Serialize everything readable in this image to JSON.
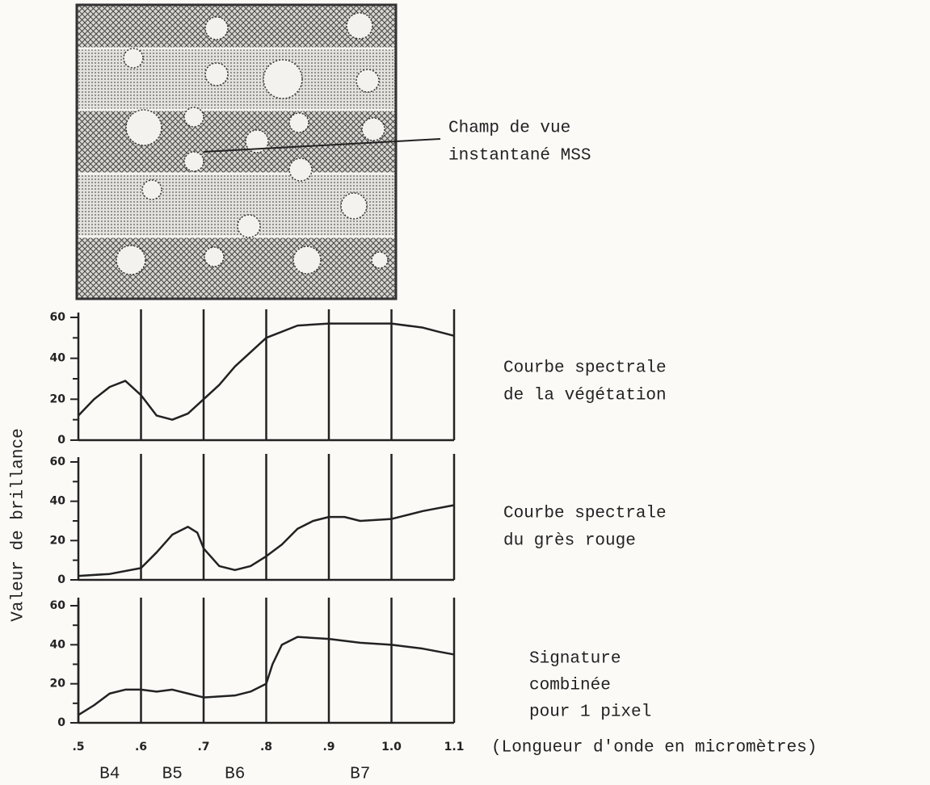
{
  "figure": {
    "label": [
      "Champ de vue",
      "instantané MSS"
    ]
  },
  "chart_data": [
    {
      "type": "line",
      "title": [
        "Courbe spectrale",
        "de la végétation"
      ],
      "x": [
        0.5,
        0.525,
        0.55,
        0.575,
        0.6,
        0.625,
        0.65,
        0.675,
        0.7,
        0.725,
        0.75,
        0.775,
        0.8,
        0.85,
        0.9,
        0.95,
        1.0,
        1.05,
        1.1
      ],
      "series": [
        {
          "color": "#222222",
          "values": [
            12,
            20,
            26,
            29,
            22,
            12,
            10,
            13,
            20,
            27,
            36,
            43,
            50,
            56,
            57,
            57,
            57,
            55,
            51
          ]
        }
      ],
      "xlim": [
        0.5,
        1.1
      ],
      "xticks": [
        0.6,
        0.7,
        0.8,
        0.9,
        1.0,
        1.1
      ],
      "ylim": [
        0,
        60
      ],
      "yticks": [
        0,
        20,
        40,
        60
      ],
      "minor_yticks": [
        10,
        30,
        50
      ]
    },
    {
      "type": "line",
      "title": [
        "Courbe spectrale",
        "du grès rouge"
      ],
      "ylabel": "Valeur de brillance",
      "x": [
        0.5,
        0.55,
        0.6,
        0.625,
        0.65,
        0.675,
        0.69,
        0.7,
        0.725,
        0.75,
        0.775,
        0.8,
        0.825,
        0.85,
        0.875,
        0.9,
        0.925,
        0.95,
        1.0,
        1.05,
        1.1
      ],
      "series": [
        {
          "color": "#222222",
          "values": [
            2,
            3,
            6,
            14,
            23,
            27,
            24,
            16,
            7,
            5,
            7,
            12,
            18,
            26,
            30,
            32,
            32,
            30,
            31,
            35,
            38
          ]
        }
      ],
      "xlim": [
        0.5,
        1.1
      ],
      "xticks": [
        0.6,
        0.7,
        0.8,
        0.9,
        1.0,
        1.1
      ],
      "ylim": [
        0,
        60
      ],
      "yticks": [
        0,
        20,
        40,
        60
      ],
      "minor_yticks": [
        10,
        30,
        50
      ]
    },
    {
      "type": "line",
      "title": [
        "Signature",
        "combinée",
        "pour 1 pixel"
      ],
      "xlabel": "(Longueur d'onde en micromètres)",
      "x": [
        0.5,
        0.525,
        0.55,
        0.575,
        0.6,
        0.625,
        0.65,
        0.675,
        0.7,
        0.75,
        0.775,
        0.8,
        0.81,
        0.825,
        0.85,
        0.9,
        0.95,
        1.0,
        1.05,
        1.1
      ],
      "series": [
        {
          "color": "#222222",
          "values": [
            4,
            9,
            15,
            17,
            17,
            16,
            17,
            15,
            13,
            14,
            16,
            20,
            30,
            40,
            44,
            43,
            41,
            40,
            38,
            35
          ]
        }
      ],
      "xlim": [
        0.5,
        1.1
      ],
      "xticks": [
        {
          "value": 0.5,
          "label": ".5"
        },
        {
          "value": 0.6,
          "label": ".6"
        },
        {
          "value": 0.7,
          "label": ".7"
        },
        {
          "value": 0.8,
          "label": ".8"
        },
        {
          "value": 0.9,
          "label": ".9"
        },
        {
          "value": 1,
          "label": "1.0"
        },
        1.1
      ],
      "ylim": [
        0,
        60
      ],
      "yticks": [
        0,
        20,
        40,
        60
      ],
      "minor_yticks": [
        10,
        30,
        50
      ],
      "bands": [
        {
          "label": "B4",
          "range": [
            0.5,
            0.6
          ]
        },
        {
          "label": "B5",
          "range": [
            0.6,
            0.7
          ]
        },
        {
          "label": "B6",
          "range": [
            0.7,
            0.8
          ]
        },
        {
          "label": "B7",
          "range": [
            0.8,
            1.1
          ]
        }
      ]
    }
  ]
}
